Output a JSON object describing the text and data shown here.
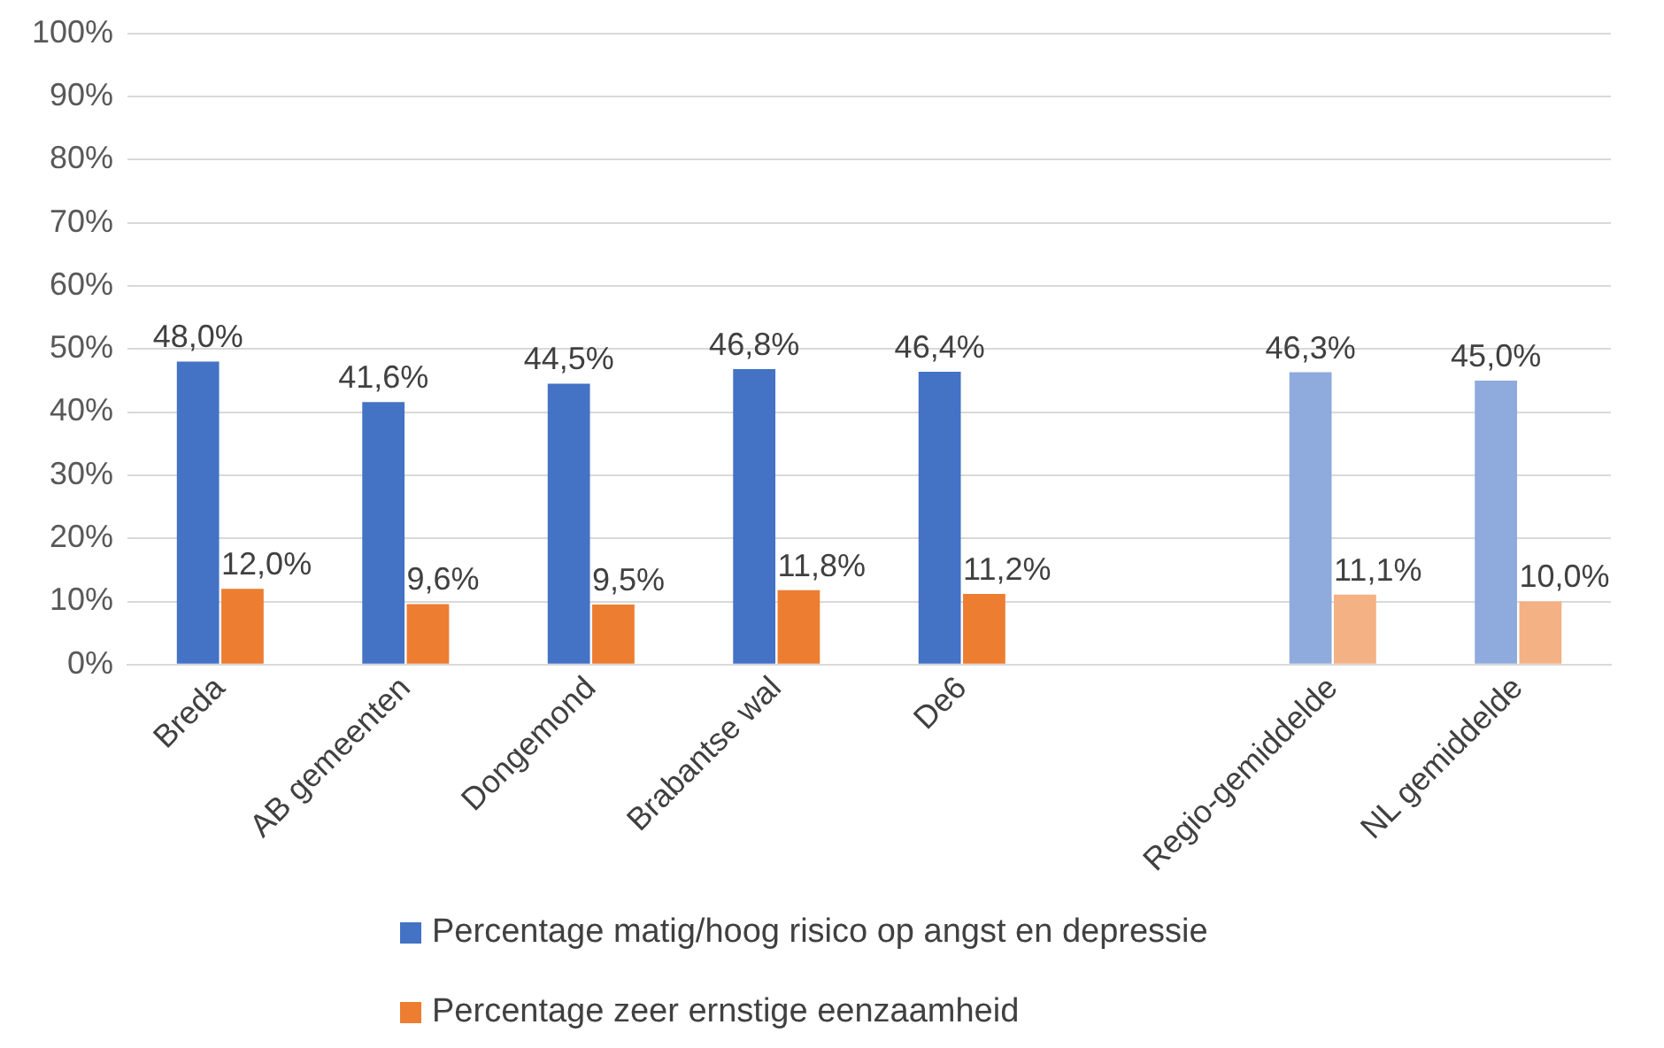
{
  "chart_data": {
    "type": "bar",
    "categories": [
      "Breda",
      "AB gemeenten",
      "Dongemond",
      "Brabantse wal",
      "De6",
      null,
      "Regio-gemiddelde",
      "NL gemiddelde"
    ],
    "series": [
      {
        "name": "Percentage matig/hoog risico op angst en depressie",
        "color": "#4472c4",
        "colors": [
          "#4472c4",
          "#4472c4",
          "#4472c4",
          "#4472c4",
          "#4472c4",
          null,
          "#8faadc",
          "#8faadc"
        ],
        "values": [
          48.0,
          41.6,
          44.5,
          46.8,
          46.4,
          null,
          46.3,
          45.0
        ],
        "value_labels": [
          "48,0%",
          "41,6%",
          "44,5%",
          "46,8%",
          "46,4%",
          null,
          "46,3%",
          "45,0%"
        ]
      },
      {
        "name": "Percentage zeer ernstige eenzaamheid",
        "color": "#ed7d31",
        "colors": [
          "#ed7d31",
          "#ed7d31",
          "#ed7d31",
          "#ed7d31",
          "#ed7d31",
          null,
          "#f4b183",
          "#f4b183"
        ],
        "values": [
          12.0,
          9.6,
          9.5,
          11.8,
          11.2,
          null,
          11.1,
          10.0
        ],
        "value_labels": [
          "12,0%",
          "9,6%",
          "9,5%",
          "11,8%",
          "11,2%",
          null,
          "11,1%",
          "10,0%"
        ]
      }
    ],
    "ylim": [
      0,
      100
    ],
    "yticks": [
      {
        "value": 0,
        "label": "0%"
      },
      {
        "value": 10,
        "label": "10%"
      },
      {
        "value": 20,
        "label": "20%"
      },
      {
        "value": 30,
        "label": "30%"
      },
      {
        "value": 40,
        "label": "40%"
      },
      {
        "value": 50,
        "label": "50%"
      },
      {
        "value": 60,
        "label": "60%"
      },
      {
        "value": 70,
        "label": "70%"
      },
      {
        "value": 80,
        "label": "80%"
      },
      {
        "value": 90,
        "label": "90%"
      },
      {
        "value": 100,
        "label": "100%"
      }
    ],
    "grid": "y",
    "legend": "bottom"
  }
}
